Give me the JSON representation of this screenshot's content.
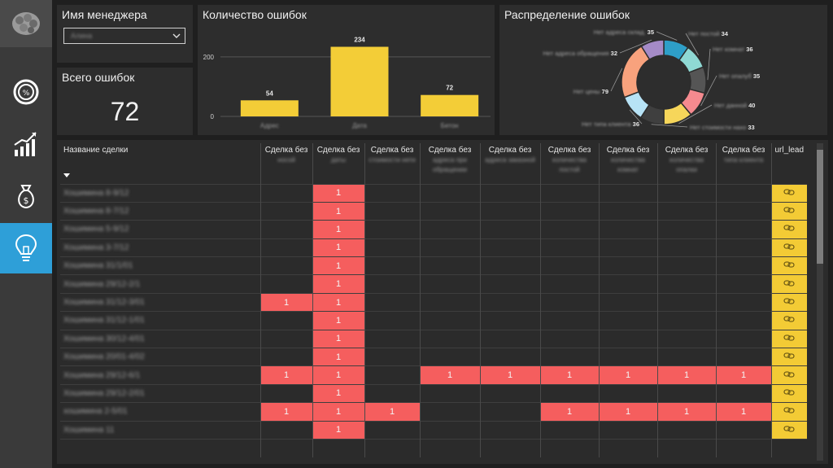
{
  "manager_filter": {
    "title": "Имя менеджера",
    "selected": "Алина"
  },
  "kpi": {
    "title": "Всего ошибок",
    "value": "72"
  },
  "bar_card": {
    "title": "Количество ошибок"
  },
  "donut_card": {
    "title": "Распределение ошибок"
  },
  "chart_data": [
    {
      "type": "bar",
      "title": "Количество ошибок",
      "categories": [
        "Адрес",
        "Дата",
        "Бетон"
      ],
      "values": [
        54,
        234,
        72
      ],
      "yticks": [
        0,
        200
      ],
      "ylim": [
        0,
        260
      ],
      "color": "#f3cd37"
    },
    {
      "type": "pie",
      "title": "Распределение ошибок",
      "labels": [
        "Нет адреса склад.",
        "Нет постой",
        "Нет комнат",
        "Нет опалуб",
        "Нет данной",
        "Нет стоимости нахо",
        "Нет типа клиента",
        "Нет цены",
        "Нет адреса обращения"
      ],
      "values": [
        35,
        34,
        36,
        35,
        40,
        33,
        36,
        79,
        32
      ],
      "colors": [
        "#2e9fc8",
        "#8fd9d4",
        "#555555",
        "#f58a8f",
        "#f6d65a",
        "#3f3f3f",
        "#b7e3f6",
        "#f8a27d",
        "#a58bc7"
      ]
    }
  ],
  "table": {
    "columns": [
      {
        "title": "Название сделки",
        "sub": ""
      },
      {
        "title": "Сделка без",
        "sub": "носой"
      },
      {
        "title": "Сделка без",
        "sub": "даты"
      },
      {
        "title": "Сделка без",
        "sub": "стоимости нети"
      },
      {
        "title": "Сделка без",
        "sub": "адреса при обращении"
      },
      {
        "title": "Сделка без",
        "sub": "адреса заказной"
      },
      {
        "title": "Сделка без",
        "sub": "количества постой"
      },
      {
        "title": "Сделка без",
        "sub": "количества комнат"
      },
      {
        "title": "Сделка без",
        "sub": "количества опалки"
      },
      {
        "title": "Сделка без",
        "sub": "типа клиента"
      },
      {
        "title": "url_lead",
        "sub": ""
      }
    ],
    "rows": [
      {
        "name": "Хошимина 8-9/12",
        "cells": [
          "",
          "1",
          "",
          "",
          "",
          "",
          "",
          "",
          ""
        ]
      },
      {
        "name": "Хошимина 8-7/12",
        "cells": [
          "",
          "1",
          "",
          "",
          "",
          "",
          "",
          "",
          ""
        ]
      },
      {
        "name": "Хошимина 5-9/12",
        "cells": [
          "",
          "1",
          "",
          "",
          "",
          "",
          "",
          "",
          ""
        ]
      },
      {
        "name": "Хошимина 3-7/12",
        "cells": [
          "",
          "1",
          "",
          "",
          "",
          "",
          "",
          "",
          ""
        ]
      },
      {
        "name": "Хошимина 31/1/01",
        "cells": [
          "",
          "1",
          "",
          "",
          "",
          "",
          "",
          "",
          ""
        ]
      },
      {
        "name": "Хошимина 29/12-2/1",
        "cells": [
          "",
          "1",
          "",
          "",
          "",
          "",
          "",
          "",
          ""
        ]
      },
      {
        "name": "Хошимина 31/12-3/01",
        "cells": [
          "1",
          "1",
          "",
          "",
          "",
          "",
          "",
          "",
          ""
        ]
      },
      {
        "name": "Хошимина 31/12-1/01",
        "cells": [
          "",
          "1",
          "",
          "",
          "",
          "",
          "",
          "",
          ""
        ]
      },
      {
        "name": "Хошимина 30/12-4/01",
        "cells": [
          "",
          "1",
          "",
          "",
          "",
          "",
          "",
          "",
          ""
        ]
      },
      {
        "name": "Хошимина 20/01-4/02",
        "cells": [
          "",
          "1",
          "",
          "",
          "",
          "",
          "",
          "",
          ""
        ]
      },
      {
        "name": "Хошимина 29/12-6/1",
        "cells": [
          "1",
          "1",
          "",
          "1",
          "1",
          "1",
          "1",
          "1",
          "1"
        ]
      },
      {
        "name": "Хошимина 29/12-2/01",
        "cells": [
          "",
          "1",
          "",
          "",
          "",
          "",
          "",
          "",
          ""
        ]
      },
      {
        "name": "хошимина 2-5/01",
        "cells": [
          "1",
          "1",
          "1",
          "",
          "",
          "1",
          "1",
          "1",
          "1"
        ]
      },
      {
        "name": "Хошимина 11",
        "cells": [
          "",
          "1",
          "",
          "",
          "",
          "",
          "",
          "",
          ""
        ]
      }
    ]
  },
  "colors": {
    "active_nav": "#2e9fd8",
    "error_cell": "#f55e5e",
    "link_cell": "#f3cb35",
    "bar": "#f3cd37"
  },
  "icons": [
    "logo-icon",
    "percent-gauge-icon",
    "growth-chart-icon",
    "money-bag-icon",
    "lightbulb-icon",
    "link-icon",
    "sort-down-icon",
    "chevron-down-icon"
  ]
}
